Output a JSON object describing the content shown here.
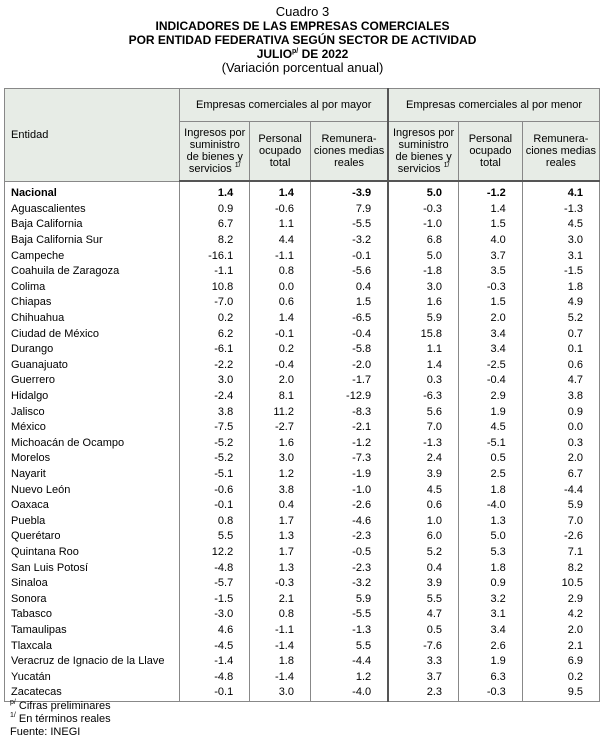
{
  "header": {
    "label": "Cuadro 3",
    "title_lines": [
      "INDICADORES DE LAS EMPRESAS COMERCIALES",
      "POR ENTIDAD FEDERATIVA SEGÚN SECTOR DE ACTIVIDAD"
    ],
    "period": {
      "month": "JULIO",
      "mark": "p/",
      "year": "DE 2022"
    },
    "subtitle": "(Variación porcentual anual)"
  },
  "table": {
    "entity_header": "Entidad",
    "groups": [
      {
        "label": "Empresas comerciales al por mayor",
        "columns": [
          {
            "label": "Ingresos por suministro de bienes y servicios",
            "note": "1/"
          },
          {
            "label": "Personal ocupado total"
          },
          {
            "label": "Remunera-ciones medias reales"
          }
        ]
      },
      {
        "label": "Empresas comerciales al por menor",
        "columns": [
          {
            "label": "Ingresos por suministro de bienes y servicios",
            "note": "1/"
          },
          {
            "label": "Personal ocupado total"
          },
          {
            "label": "Remunera-ciones medias reales"
          }
        ]
      }
    ],
    "rows": [
      [
        "Nacional",
        "1.4",
        "1.4",
        "-3.9",
        "5.0",
        "-1.2",
        "4.1"
      ],
      [
        "Aguascalientes",
        "0.9",
        "-0.6",
        "7.9",
        "-0.3",
        "1.4",
        "-1.3"
      ],
      [
        "Baja California",
        "6.7",
        "1.1",
        "-5.5",
        "-1.0",
        "1.5",
        "4.5"
      ],
      [
        "Baja California Sur",
        "8.2",
        "4.4",
        "-3.2",
        "6.8",
        "4.0",
        "3.0"
      ],
      [
        "Campeche",
        "-16.1",
        "-1.1",
        "-0.1",
        "5.0",
        "3.7",
        "3.1"
      ],
      [
        "Coahuila de Zaragoza",
        "-1.1",
        "0.8",
        "-5.6",
        "-1.8",
        "3.5",
        "-1.5"
      ],
      [
        "Colima",
        "10.8",
        "0.0",
        "0.4",
        "3.0",
        "-0.3",
        "1.8"
      ],
      [
        "Chiapas",
        "-7.0",
        "0.6",
        "1.5",
        "1.6",
        "1.5",
        "4.9"
      ],
      [
        "Chihuahua",
        "0.2",
        "1.4",
        "-6.5",
        "5.9",
        "2.0",
        "5.2"
      ],
      [
        "Ciudad de México",
        "6.2",
        "-0.1",
        "-0.4",
        "15.8",
        "3.4",
        "0.7"
      ],
      [
        "Durango",
        "-6.1",
        "0.2",
        "-5.8",
        "1.1",
        "3.4",
        "0.1"
      ],
      [
        "Guanajuato",
        "-2.2",
        "-0.4",
        "-2.0",
        "1.4",
        "-2.5",
        "0.6"
      ],
      [
        "Guerrero",
        "3.0",
        "2.0",
        "-1.7",
        "0.3",
        "-0.4",
        "4.7"
      ],
      [
        "Hidalgo",
        "-2.4",
        "8.1",
        "-12.9",
        "-6.3",
        "2.9",
        "3.8"
      ],
      [
        "Jalisco",
        "3.8",
        "11.2",
        "-8.3",
        "5.6",
        "1.9",
        "0.9"
      ],
      [
        "México",
        "-7.5",
        "-2.7",
        "-2.1",
        "7.0",
        "4.5",
        "0.0"
      ],
      [
        "Michoacán de Ocampo",
        "-5.2",
        "1.6",
        "-1.2",
        "-1.3",
        "-5.1",
        "0.3"
      ],
      [
        "Morelos",
        "-5.2",
        "3.0",
        "-7.3",
        "2.4",
        "0.5",
        "2.0"
      ],
      [
        "Nayarit",
        "-5.1",
        "1.2",
        "-1.9",
        "3.9",
        "2.5",
        "6.7"
      ],
      [
        "Nuevo León",
        "-0.6",
        "3.8",
        "-1.0",
        "4.5",
        "1.8",
        "-4.4"
      ],
      [
        "Oaxaca",
        "-0.1",
        "0.4",
        "-2.6",
        "0.6",
        "-4.0",
        "5.9"
      ],
      [
        "Puebla",
        "0.8",
        "1.7",
        "-4.6",
        "1.0",
        "1.3",
        "7.0"
      ],
      [
        "Querétaro",
        "5.5",
        "1.3",
        "-2.3",
        "6.0",
        "5.0",
        "-2.6"
      ],
      [
        "Quintana Roo",
        "12.2",
        "1.7",
        "-0.5",
        "5.2",
        "5.3",
        "7.1"
      ],
      [
        "San Luis Potosí",
        "-4.8",
        "1.3",
        "-2.3",
        "0.4",
        "1.8",
        "8.2"
      ],
      [
        "Sinaloa",
        "-5.7",
        "-0.3",
        "-3.2",
        "3.9",
        "0.9",
        "10.5"
      ],
      [
        "Sonora",
        "-1.5",
        "2.1",
        "5.9",
        "5.5",
        "3.2",
        "2.9"
      ],
      [
        "Tabasco",
        "-3.0",
        "0.8",
        "-5.5",
        "4.7",
        "3.1",
        "4.2"
      ],
      [
        "Tamaulipas",
        "4.6",
        "-1.1",
        "-1.3",
        "0.5",
        "3.4",
        "2.0"
      ],
      [
        "Tlaxcala",
        "-4.5",
        "-1.4",
        "5.5",
        "-7.6",
        "2.6",
        "2.1"
      ],
      [
        "Veracruz de Ignacio de la Llave",
        "-1.4",
        "1.8",
        "-4.4",
        "3.3",
        "1.9",
        "6.9"
      ],
      [
        "Yucatán",
        "-4.8",
        "-1.4",
        "1.2",
        "3.7",
        "6.3",
        "0.2"
      ],
      [
        "Zacatecas",
        "-0.1",
        "3.0",
        "-4.0",
        "2.3",
        "-0.3",
        "9.5"
      ]
    ]
  },
  "footnotes": [
    {
      "mark": "p/",
      "text": "Cifras preliminares"
    },
    {
      "mark": "1/",
      "text": "En términos reales"
    }
  ],
  "source": "Fuente: INEGI"
}
